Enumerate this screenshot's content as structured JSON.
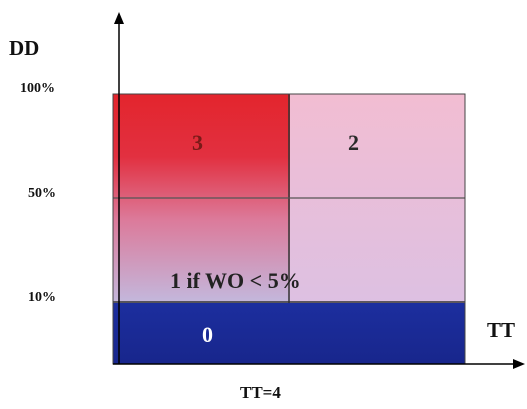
{
  "axes": {
    "y_label": "DD",
    "x_label": "TT",
    "y_ticks": [
      "100%",
      "50%",
      "10%"
    ],
    "x_marker": "TT=4"
  },
  "zones": [
    {
      "label": "3",
      "color": "#e8202a"
    },
    {
      "label": "2",
      "color": "#efb4cc"
    },
    {
      "label": "1 if WO < 5%",
      "color": "#c3a8d0"
    },
    {
      "label": "0",
      "color": "#1c2b96"
    }
  ]
}
